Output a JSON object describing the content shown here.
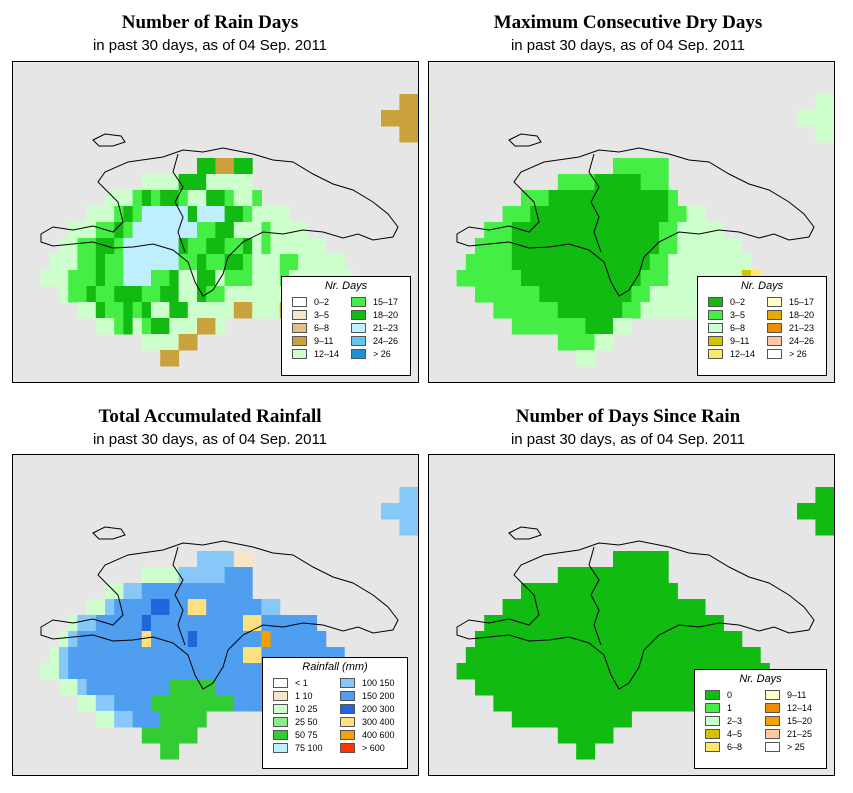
{
  "panels": [
    {
      "id": "rain-days",
      "title": "Number of Rain Days",
      "subtitle": "in past 30 days, as of  04 Sep. 2011",
      "legend": {
        "title": "Nr. Days",
        "columns": 2,
        "entries": [
          {
            "label": "0–2",
            "color": "#ffffff"
          },
          {
            "label": "3–5",
            "color": "#f5e6c8"
          },
          {
            "label": "6–8",
            "color": "#dcbf8a"
          },
          {
            "label": "9–11",
            "color": "#c9a23d"
          },
          {
            "label": "12–14",
            "color": "#ccffcc"
          },
          {
            "label": "15–17",
            "color": "#44ee44"
          },
          {
            "label": "18–20",
            "color": "#11bb11"
          },
          {
            "label": "21–23",
            "color": "#bfefff"
          },
          {
            "label": "24–26",
            "color": "#66c4f0"
          },
          {
            "label": "> 26",
            "color": "#1f8fd8"
          }
        ]
      }
    },
    {
      "id": "max-dry-days",
      "title": "Maximum Consecutive Dry Days",
      "subtitle": "in past 30 days, as of  04 Sep. 2011",
      "legend": {
        "title": "Nr. Days",
        "columns": 2,
        "entries": [
          {
            "label": "0–2",
            "color": "#11bb11"
          },
          {
            "label": "3–5",
            "color": "#44ee44"
          },
          {
            "label": "6–8",
            "color": "#ccffcc"
          },
          {
            "label": "9–11",
            "color": "#d4c400"
          },
          {
            "label": "12–14",
            "color": "#ffe866"
          },
          {
            "label": "15–17",
            "color": "#ffffcc"
          },
          {
            "label": "18–20",
            "color": "#e6a800"
          },
          {
            "label": "21–23",
            "color": "#f08c00"
          },
          {
            "label": "24–26",
            "color": "#ffc8a0"
          },
          {
            "label": "> 26",
            "color": "#ffffff"
          }
        ]
      }
    },
    {
      "id": "total-rainfall",
      "title": "Total Accumulated Rainfall",
      "subtitle": "in past 30 days, as of  04 Sep. 2011",
      "legend": {
        "title": "Rainfall (mm)",
        "columns": 2,
        "entries": [
          {
            "label": "< 1",
            "color": "#ffffff"
          },
          {
            "label": "1    10",
            "color": "#f5e6c8"
          },
          {
            "label": "10    25",
            "color": "#ccffcc"
          },
          {
            "label": "25    50",
            "color": "#88ee88"
          },
          {
            "label": "50    75",
            "color": "#33cc33"
          },
          {
            "label": "75   100",
            "color": "#bfefff"
          },
          {
            "label": "100   150",
            "color": "#88c8f8"
          },
          {
            "label": "150   200",
            "color": "#4f9ef0"
          },
          {
            "label": "200   300",
            "color": "#2266dd"
          },
          {
            "label": "300   400",
            "color": "#ffe080"
          },
          {
            "label": "400   600",
            "color": "#f5a000"
          },
          {
            "label": "> 600",
            "color": "#ff3300"
          }
        ]
      }
    },
    {
      "id": "days-since-rain",
      "title": "Number of Days Since Rain",
      "subtitle": "in past 30 days, as of  04 Sep. 2011",
      "legend": {
        "title": "Nr. Days",
        "columns": 2,
        "entries": [
          {
            "label": "0",
            "color": "#11bb11"
          },
          {
            "label": "1",
            "color": "#44ee44"
          },
          {
            "label": "2–3",
            "color": "#ccffcc"
          },
          {
            "label": "4–5",
            "color": "#d4c400"
          },
          {
            "label": "6–8",
            "color": "#ffe866"
          },
          {
            "label": "9–11",
            "color": "#ffffcc"
          },
          {
            "label": "12–14",
            "color": "#f08c00"
          },
          {
            "label": "15–20",
            "color": "#f5a000"
          },
          {
            "label": "21–25",
            "color": "#ffc8a0"
          },
          {
            "label": "> 25",
            "color": "#ffffff"
          }
        ]
      }
    }
  ],
  "grids": {
    "rain-days": [
      "............................................",
      "............................................",
      "..........................................aa",
      "........................................aaaa",
      "..........................................aa",
      "............................................",
      "....................ggddgg..................",
      "..............eeeegggeeeee..................",
      "..........eeefgfggfeeggfeef.................",
      "........eeefgfiiiiigiiiggfeeee..............",
      "......eeeffgfiiiiiiiffggeeefeeee............",
      ".....eeffggfiiiiiigffggffgefeeeeee..........",
      "....eeeffgffiiiiiiffgffggfeeeffeeeee........",
      "...eeefffgffiiiffgeeggefffeeefeeeeeee.......",
      ".....effgffgggffggeegffeeeeeeeeeedd.........",
      ".......eegffgfgeeggeeeeeddeeeddd............",
      ".........eefgefggeeedde.....................",
      "..............eeeedd........................",
      "................dd..........................",
      "............................................"
    ],
    "max-dry-days": [
      "............................................",
      "............................................",
      "..........................................cc",
      "........................................cccc",
      "..........................................cc",
      "............................................",
      "....................bbbbbb..................",
      "..............bbbbaaaaabbb..................",
      "..........bbbaaaaaaaaaaaaab.................",
      "........bbbaaaaaaaaaaaaaaabbcc..............",
      "......bbbaaaaaaaaaaaaaaaabbccccc............",
      ".....bbbbaaaaaaaaaaaaaaaabbccccccc..........",
      "....bbbbbaaaaaaaaaaaaaaabbccccccccc.........",
      "...bbbbbbbaaaaaaaaaaaaabbbccccccccde........",
      ".....bbbbbbbaaaaaaaaaabbccccccccde..........",
      ".......bbbbbbbaaaaaaabbcccccccd.............",
      ".........bbbbbbbbaaacc......................",
      "..............bbbbcc........................",
      "................cc..........................",
      "............................................"
    ],
    "total-rainfall": [
      "............................................",
      "............................................",
      "..........................................gg",
      "........................................gggg",
      "..........................................gg",
      "............................................",
      "....................ggggaa..................",
      "..............ffffggggghhh..................",
      "..........ffgghhhhhhhhhhhh.................",
      "........ffghhhhiihhjjhhhhhhgg..............",
      "......fgghhhhhihhhhhhhhhhjjhhhhhh...........",
      ".....fghhhhhhhjhhhhihhhhhhhkhhhhhh..........",
      "....fghhhhhhhhhhhhhhhhhhhjjhhhhhhhhh........",
      "...ffghhhhhhhhhhhhhhhhhhhhhhhhhhhhhhh.......",
      ".....ffghhhhhhhhheeeeehhhhhhhhhhhhh.........",
      ".......ffgghhhheeeeeeeeehhhhhhhh............",
      ".........ffgghhheeeee.......................",
      "..............eeeeee........................",
      "................ee..........................",
      "............................................"
    ],
    "days-since-rain": [
      "............................................",
      "............................................",
      "..........................................aa",
      "........................................aaaa",
      "..........................................aa",
      "............................................",
      "....................aaaaaa..................",
      "..............aaaaaaaaaaaa..................",
      "..........aaaaaaaaaaaaaaaaa.................",
      "........aaaaaaaaaaaaaaaaaaaaaa..............",
      "......aaaaaaaaaaaaaaaaaaaaaaaaaa............",
      ".....aaaaaaaaaaaaaaaaaaaaaaaaaaaaa..........",
      "....aaaaaaaaaaaaaaaaaaaaaaaaaaaaaaaa........",
      "...aaaaaaaaaaaaaaaaaaaaaaaaaaaaaaaaaa.......",
      ".....aaaaaaaaaaaaaaaaaaaaaaaaaaaaaaa.........",
      ".......aaaaaaaaaaaaaaaaaaaaaaaaa............",
      ".........aaaaaaaaaaaaa......................",
      "..............aaaaaa........................",
      "................aa..........................",
      "............................................"
    ]
  },
  "palette": {
    "rain-days": {
      "a": "#c9a23d",
      "b": "#f5e6c8",
      "c": "#dcbf8a",
      "d": "#c9a23d",
      "e": "#ccffcc",
      "f": "#44ee44",
      "g": "#11bb11",
      "h": "#bfefff",
      "i": "#bfefff",
      "j": "#66c4f0"
    },
    "max-dry-days": {
      "a": "#11bb11",
      "b": "#44ee44",
      "c": "#ccffcc",
      "d": "#d4c400",
      "e": "#ffe866"
    },
    "total-rainfall": {
      "a": "#f5e6c8",
      "e": "#33cc33",
      "f": "#ccffcc",
      "g": "#88c8f8",
      "h": "#4f9ef0",
      "i": "#2266dd",
      "j": "#ffe080",
      "k": "#f5a000"
    },
    "days-since-rain": {
      "a": "#11bb11",
      "b": "#44ee44",
      "c": "#ccffcc",
      "d": "#d4c400",
      "e": "#ffe866"
    }
  }
}
